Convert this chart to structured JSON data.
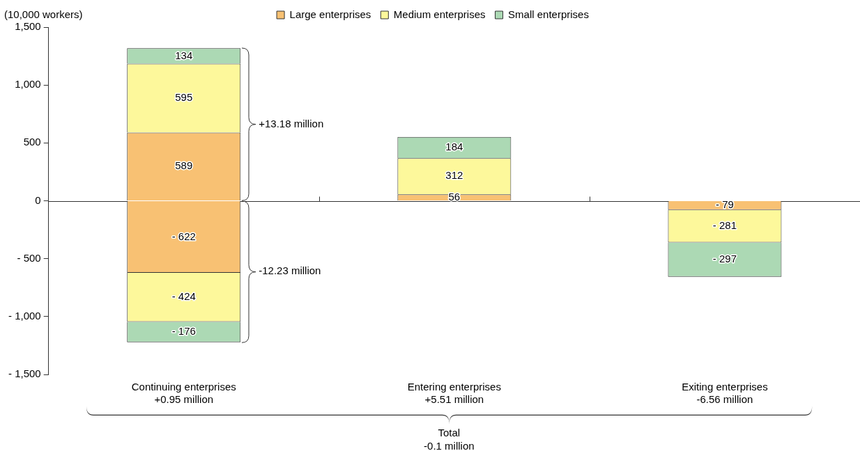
{
  "chart_data": {
    "type": "bar",
    "stacked": true,
    "legend": "top",
    "ylabel": "(10,000 workers)",
    "categories": [
      "Continuing enterprises\n+0.95 million",
      "Entering enterprises\n+5.51 million",
      "Exiting enterprises\n-6.56 million"
    ],
    "series": [
      {
        "name": "Large enterprises",
        "color": "#f8c173",
        "values": [
          589,
          56,
          null
        ],
        "value_labels": [
          "589",
          "56",
          null
        ]
      },
      {
        "name": "Medium enterprises",
        "color": "#fdf89b",
        "values": [
          595,
          312,
          null
        ],
        "value_labels": [
          "595",
          "312",
          null
        ]
      },
      {
        "name": "Small enterprises",
        "color": "#acd9b4",
        "values": [
          134,
          184,
          null
        ],
        "value_labels": [
          "134",
          "184",
          null
        ]
      },
      {
        "color": "#f8c173",
        "values": [
          -622,
          null,
          -79
        ],
        "value_labels": [
          "- 622",
          null,
          "- 79"
        ]
      },
      {
        "color": "#fdf89b",
        "values": [
          -424,
          null,
          -281
        ],
        "value_labels": [
          "- 424",
          null,
          "- 281"
        ]
      },
      {
        "color": "#acd9b4",
        "values": [
          -176,
          null,
          -297
        ],
        "value_labels": [
          "- 176",
          null,
          "- 297"
        ]
      }
    ],
    "ylim": [
      -1500,
      1500
    ],
    "yticks": [
      {
        "value": -1500,
        "label": "- 1,500"
      },
      {
        "value": -1000,
        "label": "- 1,000"
      },
      {
        "value": -500,
        "label": "- 500"
      },
      0,
      500,
      {
        "value": 1000,
        "label": "1,000"
      },
      {
        "value": 1500,
        "label": "1,500"
      }
    ],
    "annotations": [
      "+13.18 million",
      "-12.23 million",
      "Total\n-0.1 million"
    ]
  }
}
